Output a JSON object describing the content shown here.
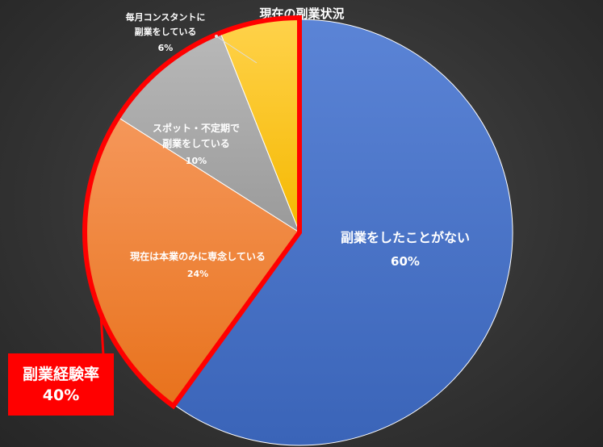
{
  "chart_data": {
    "type": "pie",
    "title": "現在の副業状況",
    "start_angle_deg": 0,
    "direction": "clockwise",
    "slices": [
      {
        "label": [
          "副業をしたことがない"
        ],
        "value": 60,
        "value_label": "60%",
        "color": "#4472c4"
      },
      {
        "label": [
          "現在は本業のみに専念している"
        ],
        "value": 24,
        "value_label": "24%",
        "color": "#ed7d31"
      },
      {
        "label": [
          "スポット・不定期で",
          "副業をしている"
        ],
        "value": 10,
        "value_label": "10%",
        "color": "#a5a5a5"
      },
      {
        "label": [
          "毎月コンスタントに",
          "副業をしている"
        ],
        "value": 6,
        "value_label": "6%",
        "color": "#ffc000"
      }
    ],
    "highlight": {
      "slices": [
        1,
        2,
        3
      ],
      "color": "#ff0000"
    },
    "callout": {
      "line1": "副業経験率",
      "line2": "40%"
    }
  }
}
